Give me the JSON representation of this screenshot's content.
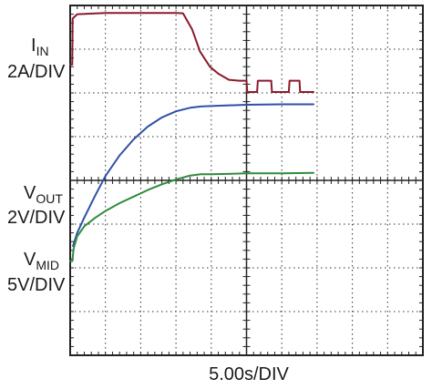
{
  "chart_data": {
    "type": "line",
    "title": "",
    "xlabel": "5.00s/DIV",
    "grid": true,
    "x_divisions": 10,
    "y_divisions": 8,
    "x_unit": "s",
    "x_range": [
      0,
      50
    ],
    "channel_labels": [
      {
        "main": "I",
        "sub": "IN",
        "scale": "2A/DIV"
      },
      {
        "main": "V",
        "sub": "OUT",
        "scale": "2V/DIV"
      },
      {
        "main": "V",
        "sub": "MID",
        "scale": "5V/DIV"
      }
    ],
    "series": [
      {
        "name": "IIN",
        "color": "#8b1a2b",
        "y_unit": "div",
        "points": [
          [
            0,
            1.35
          ],
          [
            0.3,
            1.35
          ],
          [
            0.35,
            0.3
          ],
          [
            1.0,
            0.2
          ],
          [
            5,
            0.17
          ],
          [
            10,
            0.17
          ],
          [
            15,
            0.17
          ],
          [
            16.0,
            0.18
          ],
          [
            17.3,
            0.55
          ],
          [
            18.4,
            1.05
          ],
          [
            19.8,
            1.4
          ],
          [
            21,
            1.56
          ],
          [
            22.5,
            1.7
          ],
          [
            24,
            1.72
          ],
          [
            25,
            1.72
          ],
          [
            25.1,
            1.98
          ],
          [
            26.5,
            1.98
          ],
          [
            26.6,
            1.72
          ],
          [
            27.5,
            1.72
          ],
          [
            28.5,
            1.72
          ],
          [
            28.6,
            1.98
          ],
          [
            31,
            1.98
          ],
          [
            31.1,
            1.72
          ],
          [
            32.5,
            1.72
          ],
          [
            32.6,
            1.98
          ],
          [
            34.5,
            1.98
          ]
        ]
      },
      {
        "name": "VOUT",
        "color": "#3050a6",
        "y_unit": "div",
        "points": [
          [
            0.4,
            5.5
          ],
          [
            1.0,
            5.2
          ],
          [
            2,
            4.85
          ],
          [
            3.5,
            4.36
          ],
          [
            5,
            3.9
          ],
          [
            7,
            3.43
          ],
          [
            9,
            3.06
          ],
          [
            11,
            2.77
          ],
          [
            13,
            2.56
          ],
          [
            15,
            2.42
          ],
          [
            17,
            2.34
          ],
          [
            18.5,
            2.31
          ],
          [
            20,
            2.3
          ],
          [
            25,
            2.27
          ],
          [
            30,
            2.26
          ],
          [
            34.5,
            2.26
          ]
        ]
      },
      {
        "name": "VMID",
        "color": "#2e8b3e",
        "y_unit": "div",
        "points": [
          [
            0,
            5.85
          ],
          [
            0.3,
            5.85
          ],
          [
            0.5,
            5.55
          ],
          [
            1,
            5.28
          ],
          [
            2,
            5.05
          ],
          [
            3.5,
            4.86
          ],
          [
            5,
            4.7
          ],
          [
            7,
            4.52
          ],
          [
            9,
            4.37
          ],
          [
            11,
            4.22
          ],
          [
            13,
            4.09
          ],
          [
            15,
            3.98
          ],
          [
            17,
            3.89
          ],
          [
            18.5,
            3.86
          ],
          [
            20,
            3.86
          ],
          [
            25,
            3.84
          ],
          [
            30,
            3.84
          ],
          [
            34.5,
            3.83
          ]
        ]
      }
    ]
  }
}
